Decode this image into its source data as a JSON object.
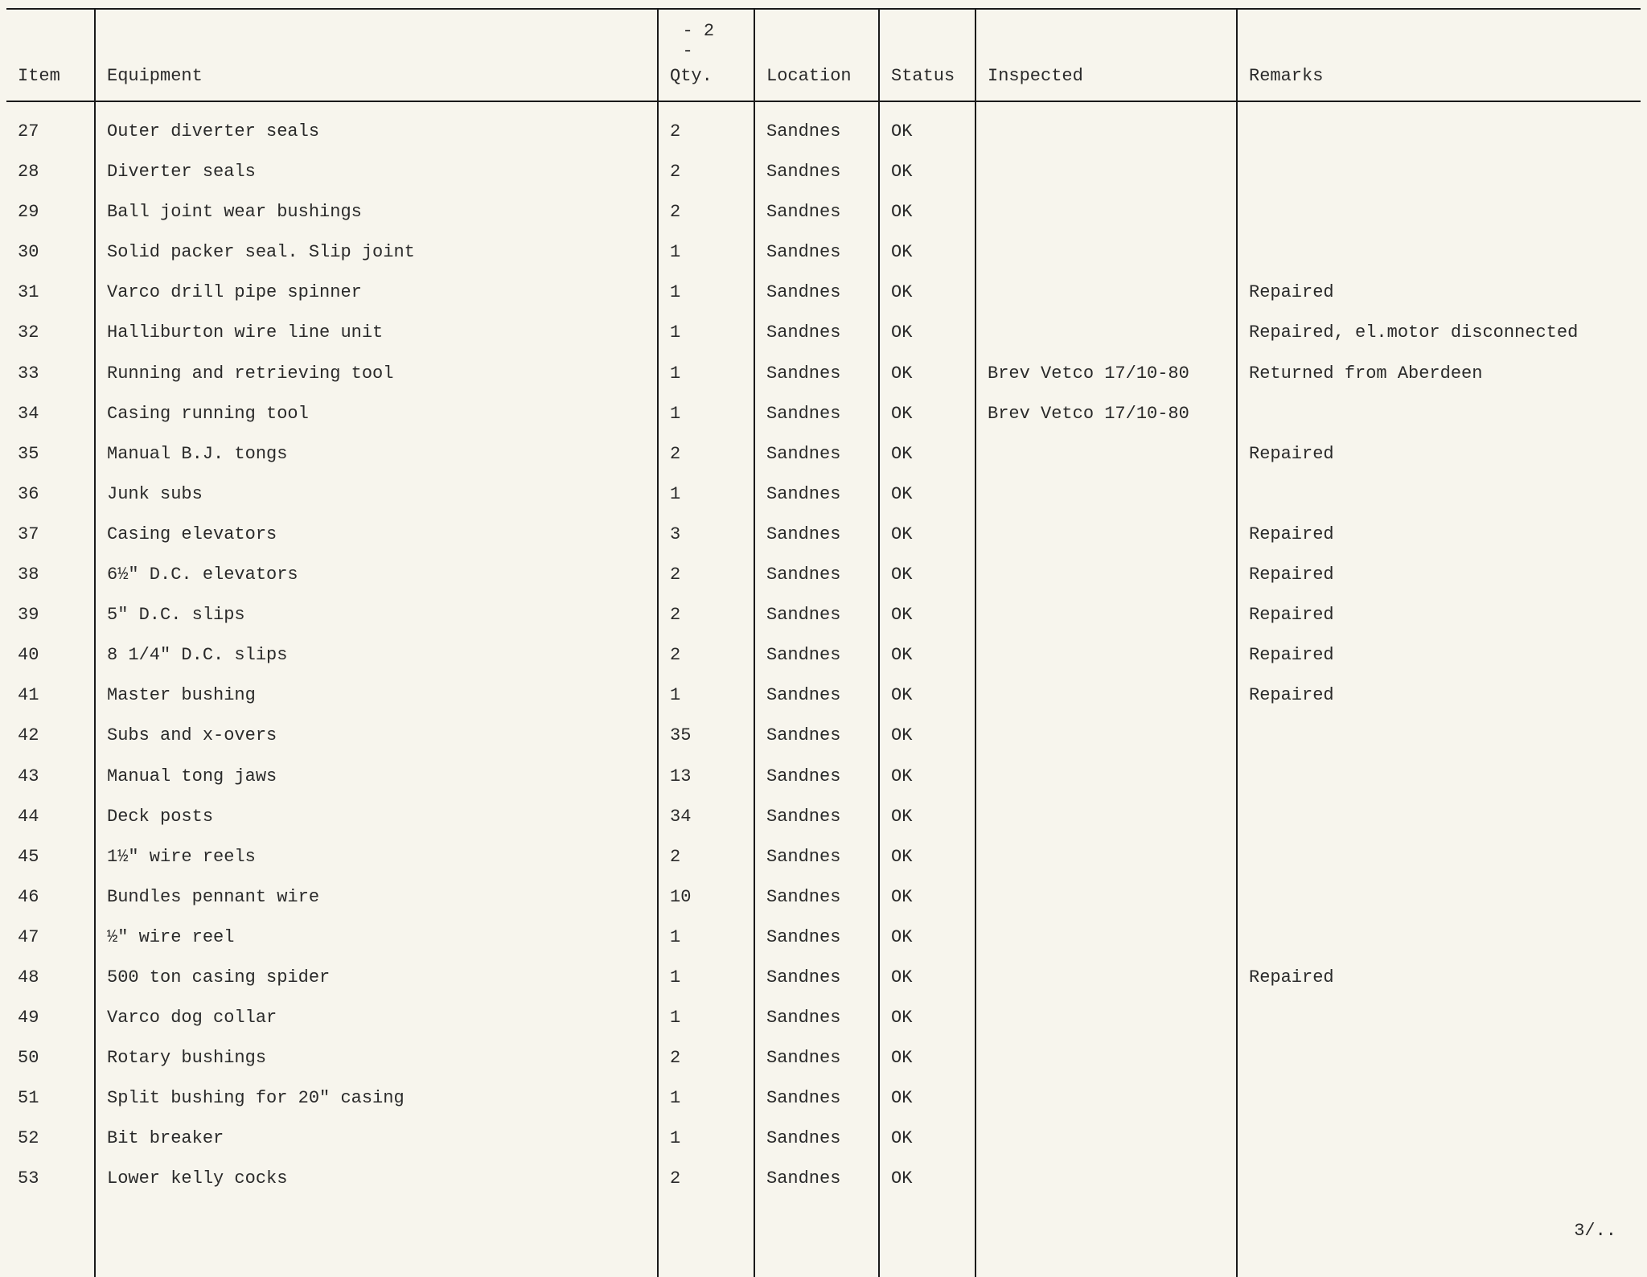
{
  "page_number_label": "- 2 -",
  "next_page_label": "3/..",
  "table": {
    "columns": [
      {
        "key": "item",
        "label": "Item",
        "class": "col-item"
      },
      {
        "key": "equipment",
        "label": "Equipment",
        "class": "col-equipment vline-left"
      },
      {
        "key": "qty",
        "label": "Qty.",
        "class": "col-qty vline-left"
      },
      {
        "key": "location",
        "label": "Location",
        "class": "col-location vline-left"
      },
      {
        "key": "status",
        "label": "Status",
        "class": "col-status vline-left"
      },
      {
        "key": "inspected",
        "label": "Inspected",
        "class": "col-inspected vline-left"
      },
      {
        "key": "remarks",
        "label": "Remarks",
        "class": "col-remarks vline-left"
      }
    ],
    "rows": [
      {
        "item": "27",
        "equipment": "Outer diverter seals",
        "qty": "2",
        "location": "Sandnes",
        "status": "OK",
        "inspected": "",
        "remarks": ""
      },
      {
        "item": "28",
        "equipment": "Diverter seals",
        "qty": "2",
        "location": "Sandnes",
        "status": "OK",
        "inspected": "",
        "remarks": ""
      },
      {
        "item": "29",
        "equipment": "Ball joint wear bushings",
        "qty": "2",
        "location": "Sandnes",
        "status": "OK",
        "inspected": "",
        "remarks": ""
      },
      {
        "item": "30",
        "equipment": "Solid packer seal.  Slip joint",
        "qty": "1",
        "location": "Sandnes",
        "status": "OK",
        "inspected": "",
        "remarks": ""
      },
      {
        "item": "31",
        "equipment": "Varco drill pipe spinner",
        "qty": "1",
        "location": "Sandnes",
        "status": "OK",
        "inspected": "",
        "remarks": "Repaired"
      },
      {
        "item": "32",
        "equipment": "Halliburton wire line unit",
        "qty": "1",
        "location": "Sandnes",
        "status": "OK",
        "inspected": "",
        "remarks": "Repaired, el.motor disconnected"
      },
      {
        "item": "33",
        "equipment": "Running and retrieving tool",
        "qty": "1",
        "location": "Sandnes",
        "status": "OK",
        "inspected": "Brev Vetco 17/10-80",
        "remarks": "Returned from Aberdeen"
      },
      {
        "item": "34",
        "equipment": "Casing running tool",
        "qty": "1",
        "location": "Sandnes",
        "status": "OK",
        "inspected": "Brev Vetco 17/10-80",
        "remarks": ""
      },
      {
        "item": "35",
        "equipment": "Manual B.J. tongs",
        "qty": "2",
        "location": "Sandnes",
        "status": "OK",
        "inspected": "",
        "remarks": "Repaired"
      },
      {
        "item": "36",
        "equipment": "Junk subs",
        "qty": "1",
        "location": "Sandnes",
        "status": "OK",
        "inspected": "",
        "remarks": ""
      },
      {
        "item": "37",
        "equipment": "Casing elevators",
        "qty": "3",
        "location": "Sandnes",
        "status": "OK",
        "inspected": "",
        "remarks": "Repaired"
      },
      {
        "item": "38",
        "equipment": "6½\" D.C. elevators",
        "qty": "2",
        "location": "Sandnes",
        "status": "OK",
        "inspected": "",
        "remarks": "Repaired"
      },
      {
        "item": "39",
        "equipment": "5\" D.C. slips",
        "qty": "2",
        "location": "Sandnes",
        "status": "OK",
        "inspected": "",
        "remarks": "Repaired"
      },
      {
        "item": "40",
        "equipment": "8 1/4\" D.C. slips",
        "qty": "2",
        "location": "Sandnes",
        "status": "OK",
        "inspected": "",
        "remarks": "Repaired"
      },
      {
        "item": "41",
        "equipment": "Master bushing",
        "qty": "1",
        "location": "Sandnes",
        "status": "OK",
        "inspected": "",
        "remarks": "Repaired"
      },
      {
        "item": "42",
        "equipment": "Subs and x-overs",
        "qty": "35",
        "location": "Sandnes",
        "status": "OK",
        "inspected": "",
        "remarks": ""
      },
      {
        "item": "43",
        "equipment": "Manual tong jaws",
        "qty": "13",
        "location": "Sandnes",
        "status": "OK",
        "inspected": "",
        "remarks": ""
      },
      {
        "item": "44",
        "equipment": "Deck posts",
        "qty": "34",
        "location": "Sandnes",
        "status": "OK",
        "inspected": "",
        "remarks": ""
      },
      {
        "item": "45",
        "equipment": "1½\" wire reels",
        "qty": "2",
        "location": "Sandnes",
        "status": "OK",
        "inspected": "",
        "remarks": ""
      },
      {
        "item": "46",
        "equipment": "Bundles pennant wire",
        "qty": "10",
        "location": "Sandnes",
        "status": "OK",
        "inspected": "",
        "remarks": ""
      },
      {
        "item": "47",
        "equipment": "½\" wire reel",
        "qty": "1",
        "location": "Sandnes",
        "status": "OK",
        "inspected": "",
        "remarks": ""
      },
      {
        "item": "48",
        "equipment": "500 ton casing spider",
        "qty": "1",
        "location": "Sandnes",
        "status": "OK",
        "inspected": "",
        "remarks": "Repaired"
      },
      {
        "item": "49",
        "equipment": "Varco dog collar",
        "qty": "1",
        "location": "Sandnes",
        "status": "OK",
        "inspected": "",
        "remarks": ""
      },
      {
        "item": "50",
        "equipment": "Rotary bushings",
        "qty": "2",
        "location": "Sandnes",
        "status": "OK",
        "inspected": "",
        "remarks": ""
      },
      {
        "item": "51",
        "equipment": "Split bushing for 20\" casing",
        "qty": "1",
        "location": "Sandnes",
        "status": "OK",
        "inspected": "",
        "remarks": ""
      },
      {
        "item": "52",
        "equipment": "Bit breaker",
        "qty": "1",
        "location": "Sandnes",
        "status": "OK",
        "inspected": "",
        "remarks": ""
      },
      {
        "item": "53",
        "equipment": "Lower kelly cocks",
        "qty": "2",
        "location": "Sandnes",
        "status": "OK",
        "inspected": "",
        "remarks": ""
      }
    ]
  },
  "style": {
    "background_color": "#f7f5ed",
    "text_color": "#2a2a2a",
    "rule_color": "#1a1a1a",
    "font_family": "Courier New, Courier, monospace",
    "font_size_pt": 16
  }
}
